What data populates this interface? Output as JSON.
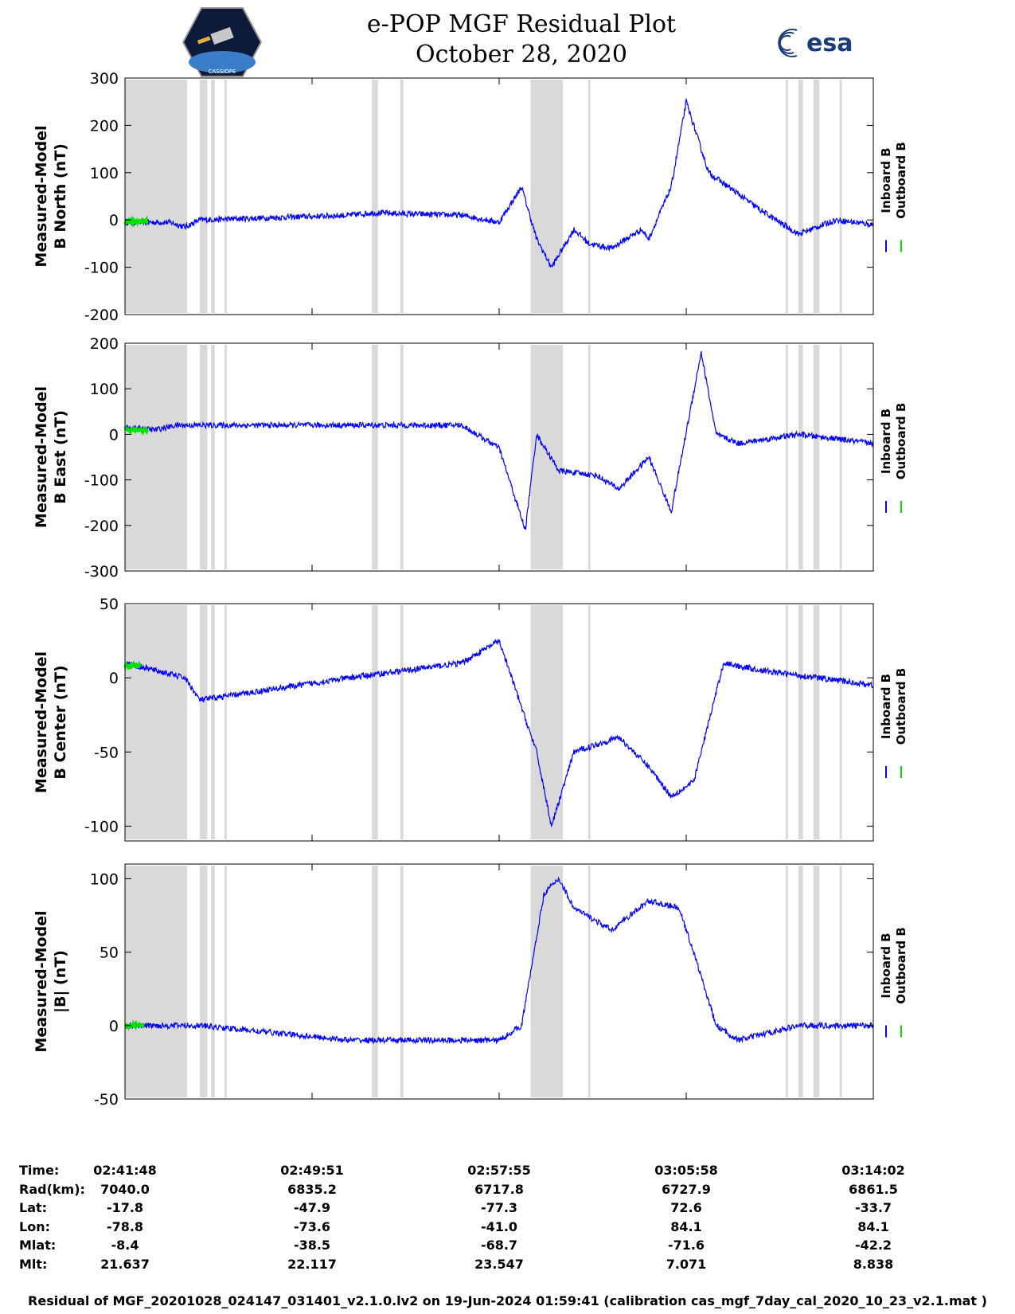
{
  "header": {
    "title": "e-POP MGF Residual Plot",
    "date": "October 28, 2020",
    "left_logo": "cassiope-mission-logo",
    "right_logo": "esa-logo",
    "right_logo_text": "esa",
    "cassiope_logo_text": "CASSIOPE"
  },
  "colors": {
    "inboard": "#0000ff",
    "outboard": "#00e000",
    "shade": "#d9d9d9"
  },
  "chart_data": [
    {
      "type": "line",
      "ylabel_line1": "Measured-Model",
      "ylabel_line2": "B North (nT)",
      "ylim": [
        -200,
        300
      ],
      "yticks": [
        -200,
        -100,
        0,
        100,
        200,
        300
      ],
      "series": [
        {
          "name": "Inboard B",
          "color": "#0000ff",
          "points": [
            [
              0,
              -5
            ],
            [
              0.06,
              -5
            ],
            [
              0.08,
              -15
            ],
            [
              0.1,
              0
            ],
            [
              0.3,
              10
            ],
            [
              0.33,
              15
            ],
            [
              0.45,
              10
            ],
            [
              0.5,
              -5
            ],
            [
              0.53,
              70
            ],
            [
              0.55,
              -40
            ],
            [
              0.57,
              -100
            ],
            [
              0.6,
              -20
            ],
            [
              0.62,
              -50
            ],
            [
              0.65,
              -60
            ],
            [
              0.69,
              -20
            ],
            [
              0.7,
              -40
            ],
            [
              0.73,
              70
            ],
            [
              0.75,
              250
            ],
            [
              0.78,
              100
            ],
            [
              0.85,
              20
            ],
            [
              0.9,
              -30
            ],
            [
              0.95,
              0
            ],
            [
              1,
              -10
            ]
          ]
        },
        {
          "name": "Outboard B",
          "color": "#00e000",
          "points": [
            [
              0,
              -3
            ],
            [
              0.03,
              -3
            ]
          ]
        }
      ]
    },
    {
      "type": "line",
      "ylabel_line1": "Measured-Model",
      "ylabel_line2": "B East (nT)",
      "ylim": [
        -300,
        200
      ],
      "yticks": [
        -300,
        -200,
        -100,
        0,
        100,
        200
      ],
      "series": [
        {
          "name": "Inboard B",
          "color": "#0000ff",
          "points": [
            [
              0,
              15
            ],
            [
              0.04,
              10
            ],
            [
              0.07,
              20
            ],
            [
              0.45,
              20
            ],
            [
              0.5,
              -30
            ],
            [
              0.535,
              -210
            ],
            [
              0.55,
              0
            ],
            [
              0.58,
              -80
            ],
            [
              0.63,
              -90
            ],
            [
              0.66,
              -120
            ],
            [
              0.7,
              -50
            ],
            [
              0.73,
              -170
            ],
            [
              0.77,
              180
            ],
            [
              0.79,
              0
            ],
            [
              0.82,
              -20
            ],
            [
              0.9,
              0
            ],
            [
              1,
              -20
            ]
          ]
        },
        {
          "name": "Outboard B",
          "color": "#00e000",
          "points": [
            [
              0,
              10
            ],
            [
              0.03,
              10
            ]
          ]
        }
      ]
    },
    {
      "type": "line",
      "ylabel_line1": "Measured-Model",
      "ylabel_line2": "B Center (nT)",
      "ylim": [
        -110,
        50
      ],
      "yticks": [
        -100,
        -50,
        0,
        50
      ],
      "series": [
        {
          "name": "Inboard B",
          "color": "#0000ff",
          "points": [
            [
              0,
              10
            ],
            [
              0.08,
              0
            ],
            [
              0.1,
              -15
            ],
            [
              0.3,
              0
            ],
            [
              0.45,
              10
            ],
            [
              0.5,
              25
            ],
            [
              0.55,
              -50
            ],
            [
              0.57,
              -100
            ],
            [
              0.6,
              -50
            ],
            [
              0.66,
              -40
            ],
            [
              0.7,
              -60
            ],
            [
              0.73,
              -80
            ],
            [
              0.76,
              -70
            ],
            [
              0.8,
              10
            ],
            [
              0.85,
              5
            ],
            [
              1,
              -5
            ]
          ]
        },
        {
          "name": "Outboard B",
          "color": "#00e000",
          "points": [
            [
              0,
              8
            ],
            [
              0.02,
              8
            ]
          ]
        }
      ]
    },
    {
      "type": "line",
      "ylabel_line1": "Measured-Model",
      "ylabel_line2": "|B| (nT)",
      "ylim": [
        -50,
        110
      ],
      "yticks": [
        -50,
        0,
        50,
        100
      ],
      "series": [
        {
          "name": "Inboard B",
          "color": "#0000ff",
          "points": [
            [
              0,
              0
            ],
            [
              0.1,
              0
            ],
            [
              0.3,
              -10
            ],
            [
              0.5,
              -10
            ],
            [
              0.53,
              0
            ],
            [
              0.56,
              90
            ],
            [
              0.58,
              100
            ],
            [
              0.6,
              80
            ],
            [
              0.65,
              65
            ],
            [
              0.7,
              85
            ],
            [
              0.74,
              80
            ],
            [
              0.76,
              50
            ],
            [
              0.79,
              0
            ],
            [
              0.82,
              -10
            ],
            [
              0.9,
              0
            ],
            [
              1,
              0
            ]
          ]
        },
        {
          "name": "Outboard B",
          "color": "#00e000",
          "points": [
            [
              0,
              0
            ],
            [
              0.025,
              0
            ]
          ]
        }
      ]
    }
  ],
  "shaded_intervals": [
    [
      0.0,
      0.083
    ],
    [
      0.1,
      0.11
    ],
    [
      0.115,
      0.12
    ],
    [
      0.133,
      0.136
    ],
    [
      0.33,
      0.338
    ],
    [
      0.368,
      0.372
    ],
    [
      0.542,
      0.585
    ],
    [
      0.619,
      0.622
    ],
    [
      0.883,
      0.886
    ],
    [
      0.9,
      0.906
    ],
    [
      0.92,
      0.928
    ],
    [
      0.955,
      0.958
    ]
  ],
  "legend": {
    "inboard": "Inboard B",
    "outboard": "Outboard B"
  },
  "ephemeris": {
    "labels": [
      "Time:",
      "Rad(km):",
      "Lat:",
      "Lon:",
      "Mlat:",
      "Mlt:"
    ],
    "columns": [
      [
        "02:41:48",
        "7040.0",
        "-17.8",
        "-78.8",
        "-8.4",
        "21.637"
      ],
      [
        "02:49:51",
        "6835.2",
        "-47.9",
        "-73.6",
        "-38.5",
        "22.117"
      ],
      [
        "02:57:55",
        "6717.8",
        "-77.3",
        "-41.0",
        "-68.7",
        "23.547"
      ],
      [
        "03:05:58",
        "6727.9",
        "72.6",
        "84.1",
        "-71.6",
        "7.071"
      ],
      [
        "03:14:02",
        "6861.5",
        "-33.7",
        "84.1",
        "-42.2",
        "8.838"
      ]
    ]
  },
  "footer": "Residual of MGF_20201028_024147_031401_v2.1.0.lv2 on 19-Jun-2024 01:59:41 (calibration cas_mgf_7day_cal_2020_10_23_v2.1.mat )"
}
